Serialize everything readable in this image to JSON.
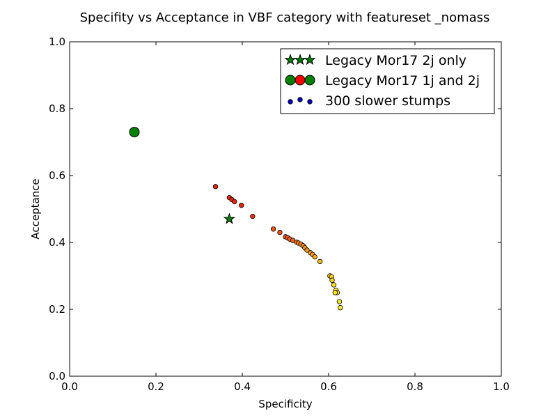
{
  "chart_data": {
    "type": "scatter",
    "title": "Specifity vs Acceptance in VBF category with featureset _nomass",
    "xlabel": "Specificity",
    "ylabel": "Acceptance",
    "xlim": [
      0.0,
      1.0
    ],
    "ylim": [
      0.0,
      1.0
    ],
    "xticks": [
      "0.0",
      "0.2",
      "0.4",
      "0.6",
      "0.8",
      "1.0"
    ],
    "yticks": [
      "0.0",
      "0.2",
      "0.4",
      "0.6",
      "0.8",
      "1.0"
    ],
    "grid": false,
    "legend_position": "top-right",
    "series": [
      {
        "name": "Legacy Mor17 2j only",
        "marker": "star",
        "color": "#008000",
        "points": [
          [
            0.37,
            0.47
          ]
        ]
      },
      {
        "name": "Legacy Mor17 1j and 2j",
        "marker": "large-circle",
        "color": "#008000",
        "legend_colors": [
          "#008000",
          "#ff0000",
          "#008000"
        ],
        "points": [
          [
            0.15,
            0.73
          ]
        ]
      },
      {
        "name": "300 slower stumps",
        "marker": "small-circle",
        "color": "#0000ff",
        "legend_colors": [
          "#0000bf",
          "#0000bf",
          "#0000bf"
        ],
        "points": [
          [
            0.338,
            0.567,
            "#e8240c"
          ],
          [
            0.37,
            0.534,
            "#e8240c"
          ],
          [
            0.376,
            0.528,
            "#e8240c"
          ],
          [
            0.382,
            0.522,
            "#e8240c"
          ],
          [
            0.398,
            0.511,
            "#e8240c"
          ],
          [
            0.424,
            0.478,
            "#e8340e"
          ],
          [
            0.472,
            0.44,
            "#f04f10"
          ],
          [
            0.487,
            0.43,
            "#f04f10"
          ],
          [
            0.5,
            0.417,
            "#f05a12"
          ],
          [
            0.505,
            0.414,
            "#f05a12"
          ],
          [
            0.51,
            0.41,
            "#f06414"
          ],
          [
            0.517,
            0.406,
            "#f06414"
          ],
          [
            0.526,
            0.401,
            "#f57a16"
          ],
          [
            0.53,
            0.398,
            "#f57a16"
          ],
          [
            0.536,
            0.395,
            "#f78a18"
          ],
          [
            0.541,
            0.39,
            "#f78a18"
          ],
          [
            0.545,
            0.384,
            "#f8941a"
          ],
          [
            0.55,
            0.377,
            "#f8941a"
          ],
          [
            0.558,
            0.369,
            "#f9a01c"
          ],
          [
            0.563,
            0.364,
            "#f9a01c"
          ],
          [
            0.568,
            0.357,
            "#faad1e"
          ],
          [
            0.58,
            0.343,
            "#fbbc20"
          ],
          [
            0.603,
            0.3,
            "#fdd722"
          ],
          [
            0.607,
            0.297,
            "#fdd722"
          ],
          [
            0.608,
            0.287,
            "#fdd722"
          ],
          [
            0.612,
            0.273,
            "#fde024"
          ],
          [
            0.617,
            0.257,
            "#fde024"
          ],
          [
            0.62,
            0.25,
            "#fee626"
          ],
          [
            0.615,
            0.25,
            "#fee626"
          ],
          [
            0.625,
            0.223,
            "#fee626"
          ],
          [
            0.627,
            0.205,
            "#ffec28"
          ]
        ]
      }
    ]
  }
}
